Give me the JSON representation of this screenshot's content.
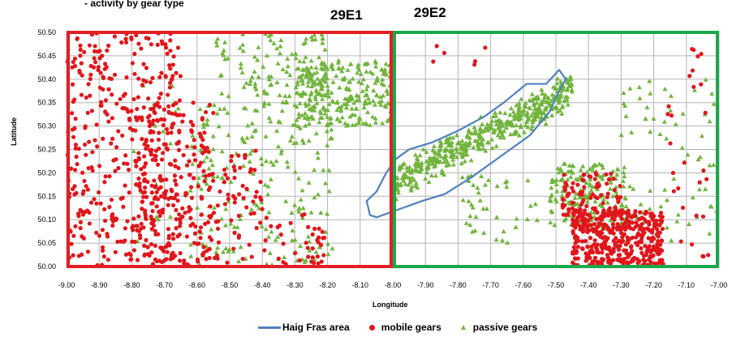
{
  "chart_data": {
    "type": "scatter",
    "subtitle": "- activity  by gear type",
    "xlabel": "Longitude",
    "ylabel": "Latitude",
    "xlim": [
      -9.0,
      -7.0
    ],
    "ylim": [
      50.0,
      50.5
    ],
    "x_ticks": [
      "-9.00",
      "-8.90",
      "-8.80",
      "-8.70",
      "-8.60",
      "-8.50",
      "-8.40",
      "-8.30",
      "-8.20",
      "-8.10",
      "-8.00",
      "-7.90",
      "-7.80",
      "-7.70",
      "-7.60",
      "-7.50",
      "-7.40",
      "-7.30",
      "-7.20",
      "-7.10",
      "-7.00"
    ],
    "y_ticks": [
      "50.00",
      "50.05",
      "50.10",
      "50.15",
      "50.20",
      "50.25",
      "50.30",
      "50.35",
      "50.40",
      "50.45",
      "50.50"
    ],
    "grid": true,
    "legend_position": "bottom",
    "colors": {
      "mobile": "#e0161b",
      "passive": "#71b43c",
      "haig_fras": "#4f81bd",
      "box_29E1": "#e31e24",
      "box_29E2": "#19a84a",
      "grid": "#b3b3b3"
    },
    "boxes": [
      {
        "label": "29E1",
        "x": [
          -9.0,
          -8.0
        ],
        "y": [
          50.0,
          50.5
        ]
      },
      {
        "label": "29E2",
        "x": [
          -8.0,
          -7.0
        ],
        "y": [
          50.0,
          50.5
        ]
      }
    ],
    "series": [
      {
        "name": "Haig Fras area",
        "kind": "line",
        "points": [
          [
            -7.99,
            50.23
          ],
          [
            -8.02,
            50.2
          ],
          [
            -8.05,
            50.16
          ],
          [
            -8.08,
            50.14
          ],
          [
            -8.07,
            50.11
          ],
          [
            -8.05,
            50.105
          ],
          [
            -7.99,
            50.12
          ],
          [
            -7.91,
            50.14
          ],
          [
            -7.84,
            50.155
          ],
          [
            -7.76,
            50.19
          ],
          [
            -7.7,
            50.22
          ],
          [
            -7.65,
            50.245
          ],
          [
            -7.58,
            50.28
          ],
          [
            -7.52,
            50.33
          ],
          [
            -7.49,
            50.375
          ],
          [
            -7.47,
            50.4
          ],
          [
            -7.49,
            50.42
          ],
          [
            -7.53,
            50.39
          ],
          [
            -7.59,
            50.39
          ],
          [
            -7.66,
            50.35
          ],
          [
            -7.72,
            50.32
          ],
          [
            -7.8,
            50.29
          ],
          [
            -7.88,
            50.265
          ],
          [
            -7.95,
            50.25
          ],
          [
            -7.99,
            50.23
          ]
        ]
      },
      {
        "name": "mobile gears",
        "kind": "points",
        "clusters": [
          {
            "n": 380,
            "x": [
              -9.0,
              -8.65
            ],
            "y": [
              50.0,
              50.5
            ]
          },
          {
            "n": 230,
            "x": [
              -8.78,
              -8.55
            ],
            "y": [
              50.0,
              50.35
            ]
          },
          {
            "n": 60,
            "x": [
              -8.55,
              -8.4
            ],
            "y": [
              50.0,
              50.25
            ]
          },
          {
            "n": 40,
            "x": [
              -8.4,
              -8.2
            ],
            "y": [
              50.0,
              50.12
            ]
          },
          {
            "n": 420,
            "x": [
              -7.45,
              -7.17
            ],
            "y": [
              50.0,
              50.12
            ]
          },
          {
            "n": 90,
            "x": [
              -7.48,
              -7.3
            ],
            "y": [
              50.1,
              50.2
            ]
          },
          {
            "n": 20,
            "x": [
              -7.18,
              -7.02
            ],
            "y": [
              50.0,
              50.35
            ]
          },
          {
            "n": 8,
            "x": [
              -7.1,
              -7.05
            ],
            "y": [
              50.35,
              50.47
            ]
          },
          {
            "n": 6,
            "x": [
              -7.95,
              -7.7
            ],
            "y": [
              50.4,
              50.48
            ]
          }
        ]
      },
      {
        "name": "passive gears",
        "kind": "points",
        "clusters": [
          {
            "n": 480,
            "x": [
              -7.99,
              -7.45
            ],
            "y": "diag"
          },
          {
            "n": 260,
            "x": [
              -8.3,
              -8.0
            ],
            "y": [
              50.3,
              50.44
            ]
          },
          {
            "n": 220,
            "x": [
              -8.62,
              -8.18
            ],
            "y": [
              50.0,
              50.35
            ]
          },
          {
            "n": 110,
            "x": [
              -8.55,
              -8.2
            ],
            "y": [
              50.35,
              50.5
            ]
          },
          {
            "n": 180,
            "x": [
              -7.52,
              -7.28
            ],
            "y": [
              50.08,
              50.22
            ]
          },
          {
            "n": 70,
            "x": [
              -7.3,
              -7.0
            ],
            "y": [
              50.05,
              50.4
            ]
          },
          {
            "n": 40,
            "x": [
              -7.8,
              -7.55
            ],
            "y": [
              50.05,
              50.2
            ]
          },
          {
            "n": 20,
            "x": [
              -8.8,
              -8.62
            ],
            "y": [
              50.0,
              50.4
            ]
          }
        ]
      }
    ]
  },
  "legend": {
    "haig_fras": "Haig Fras area",
    "mobile": "mobile gears",
    "passive": "passive gears"
  }
}
